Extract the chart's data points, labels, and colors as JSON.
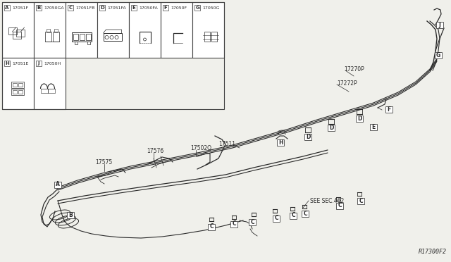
{
  "bg_color": "#f0f0eb",
  "line_color": "#2a2a2a",
  "box_color": "#ffffff",
  "border_color": "#444444",
  "diagram_id": "R17300F2",
  "parts_grid": {
    "row1": [
      {
        "label": "A",
        "part": "17051F"
      },
      {
        "label": "B",
        "part": "17050GA"
      },
      {
        "label": "C",
        "part": "17051FB"
      },
      {
        "label": "D",
        "part": "17051FA"
      },
      {
        "label": "E",
        "part": "17050FA"
      },
      {
        "label": "F",
        "part": "17050F"
      },
      {
        "label": "G",
        "part": "17050G"
      }
    ],
    "row2": [
      {
        "label": "H",
        "part": "17051E"
      },
      {
        "label": "J",
        "part": "17050H"
      }
    ]
  }
}
